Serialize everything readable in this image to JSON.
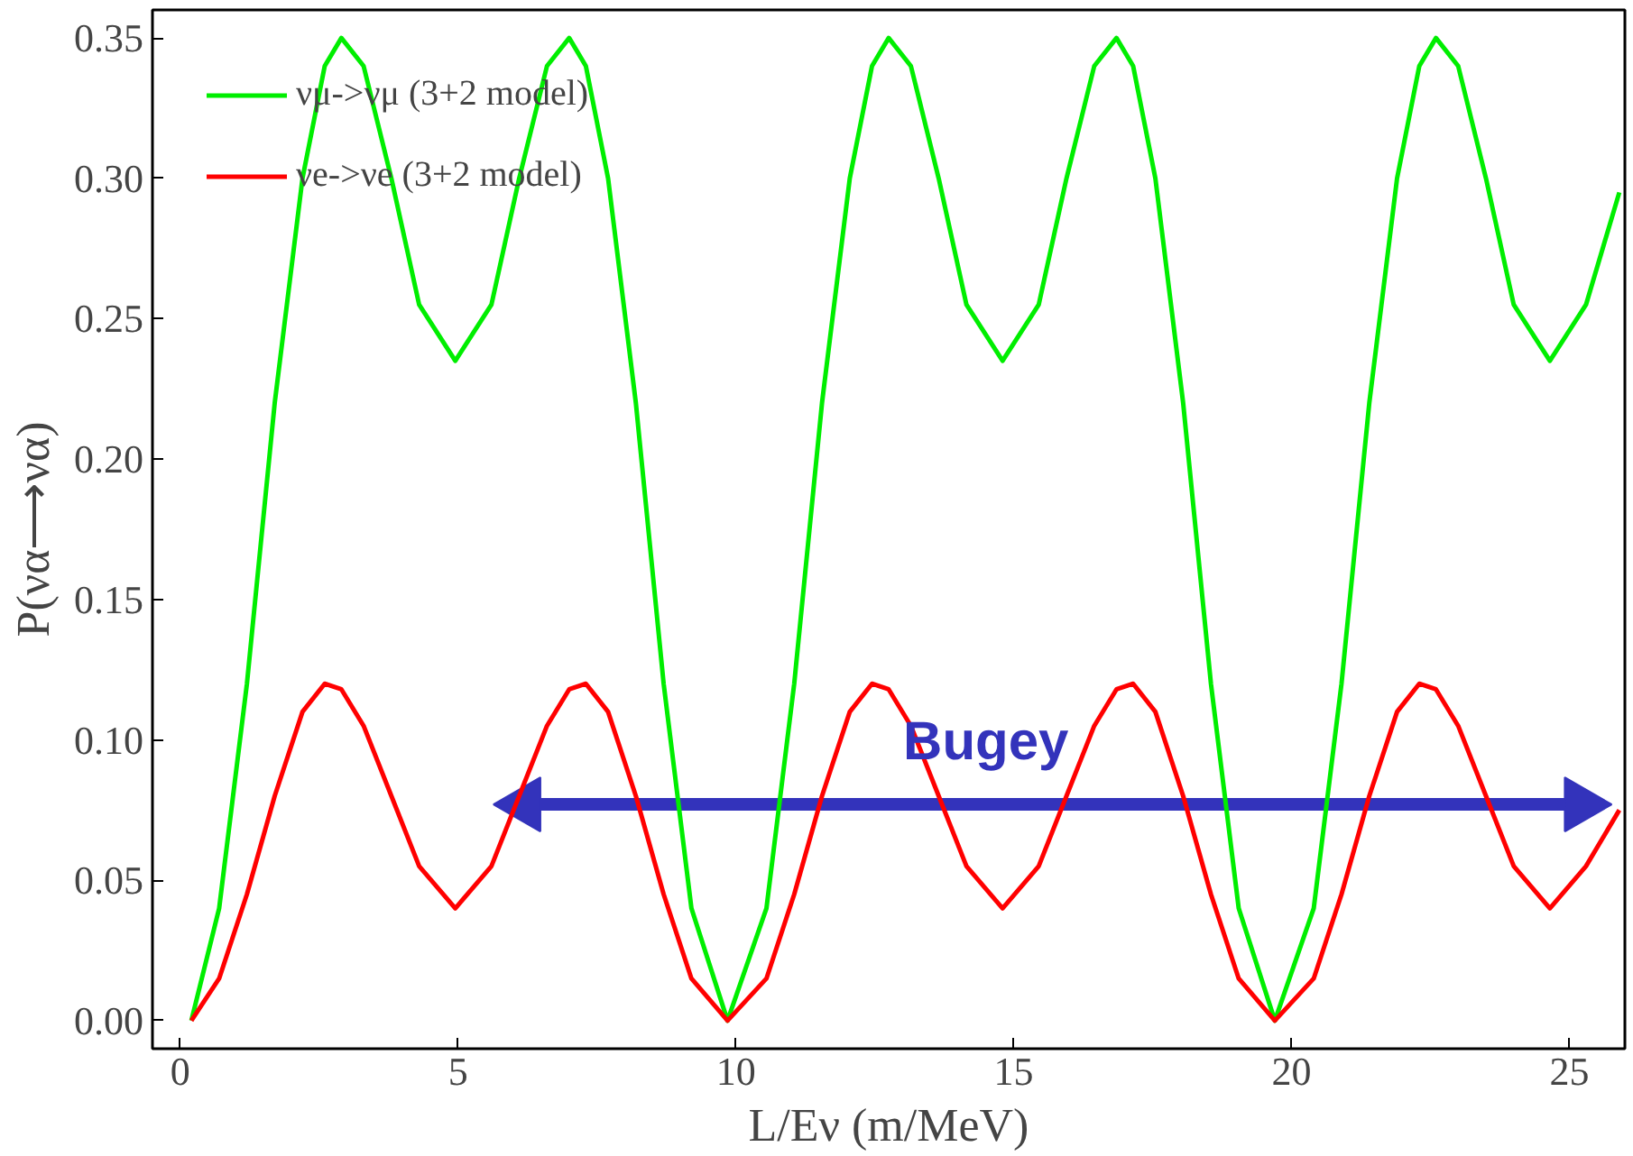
{
  "chart_data": {
    "type": "line",
    "xlabel": "L/Eν (m/MeV)",
    "ylabel": "P(να⟶να)",
    "xlim": [
      -0.5,
      26
    ],
    "ylim": [
      -0.01,
      0.36
    ],
    "xticks": [
      0,
      5,
      10,
      15,
      20,
      25
    ],
    "yticks": [
      {
        "value": 0,
        "label": "0.00"
      },
      {
        "value": 0.05,
        "label": "0.05"
      },
      {
        "value": 0.1,
        "label": "0.10"
      },
      {
        "value": 0.15,
        "label": "0.15"
      },
      {
        "value": 0.2,
        "label": "0.20"
      },
      {
        "value": 0.25,
        "label": "0.25"
      },
      {
        "value": 0.3,
        "label": "0.30"
      },
      {
        "value": 0.35,
        "label": "0.35"
      }
    ],
    "grid": false,
    "legend": "top left",
    "marker": "none",
    "line_style": "solid",
    "series": [
      {
        "type": "line",
        "color": "#3333bb",
        "x": [
          6.2,
          25.2
        ],
        "values": [
          0.077,
          0.077
        ],
        "marker": "triangle"
      },
      {
        "name": "νμ->νμ (3+2 model)",
        "color": "#00ee00",
        "x": [
          0.2,
          0.7,
          1.2,
          1.7,
          2.2,
          2.6,
          2.9,
          3.3,
          3.8,
          4.3,
          4.95,
          5.6,
          6.1,
          6.6,
          7.0,
          7.3,
          7.7,
          8.2,
          8.7,
          9.2,
          9.85,
          10.55,
          11.05,
          11.55,
          12.05,
          12.45,
          12.75,
          13.15,
          13.65,
          14.15,
          14.8,
          15.45,
          15.95,
          16.45,
          16.85,
          17.15,
          17.55,
          18.05,
          18.55,
          19.05,
          19.7,
          20.4,
          20.9,
          21.4,
          21.9,
          22.3,
          22.6,
          23.0,
          23.5,
          24.0,
          24.65,
          25.3,
          25.9
        ],
        "values": [
          0,
          0.04,
          0.12,
          0.22,
          0.3,
          0.34,
          0.35,
          0.34,
          0.3,
          0.255,
          0.235,
          0.255,
          0.3,
          0.34,
          0.35,
          0.34,
          0.3,
          0.22,
          0.12,
          0.04,
          0,
          0.04,
          0.12,
          0.22,
          0.3,
          0.34,
          0.35,
          0.34,
          0.3,
          0.255,
          0.235,
          0.255,
          0.3,
          0.34,
          0.35,
          0.34,
          0.3,
          0.22,
          0.12,
          0.04,
          0,
          0.04,
          0.12,
          0.22,
          0.3,
          0.34,
          0.35,
          0.34,
          0.3,
          0.255,
          0.235,
          0.255,
          0.295
        ]
      },
      {
        "name": "νe->νe (3+2 model)",
        "color": "#ff0000",
        "x": [
          0.2,
          0.7,
          1.2,
          1.7,
          2.2,
          2.6,
          2.9,
          3.3,
          3.8,
          4.3,
          4.95,
          5.6,
          6.1,
          6.6,
          7.0,
          7.3,
          7.7,
          8.2,
          8.7,
          9.2,
          9.85,
          10.55,
          11.05,
          11.55,
          12.05,
          12.45,
          12.75,
          13.15,
          13.65,
          14.15,
          14.8,
          15.45,
          15.95,
          16.45,
          16.85,
          17.15,
          17.55,
          18.05,
          18.55,
          19.05,
          19.7,
          20.4,
          20.9,
          21.4,
          21.9,
          22.3,
          22.6,
          23.0,
          23.5,
          24.0,
          24.65,
          25.3,
          25.9
        ],
        "values": [
          0,
          0.015,
          0.045,
          0.08,
          0.11,
          0.12,
          0.118,
          0.105,
          0.08,
          0.055,
          0.04,
          0.055,
          0.08,
          0.105,
          0.118,
          0.12,
          0.11,
          0.08,
          0.045,
          0.015,
          0,
          0.015,
          0.045,
          0.08,
          0.11,
          0.12,
          0.118,
          0.105,
          0.08,
          0.055,
          0.04,
          0.055,
          0.08,
          0.105,
          0.118,
          0.12,
          0.11,
          0.08,
          0.045,
          0.015,
          0,
          0.015,
          0.045,
          0.08,
          0.11,
          0.12,
          0.118,
          0.105,
          0.08,
          0.055,
          0.04,
          0.055,
          0.075
        ]
      }
    ],
    "annotations": [
      {
        "text": "Bugey",
        "x": 14.5,
        "y": 0.077
      }
    ]
  }
}
